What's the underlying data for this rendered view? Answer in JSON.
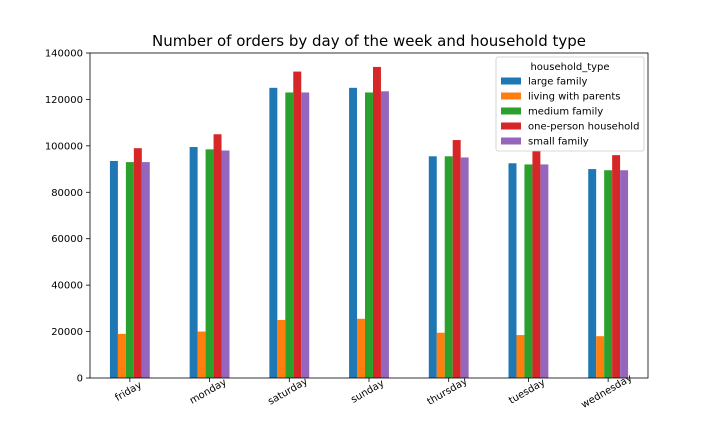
{
  "chart_data": {
    "type": "bar",
    "title": "Number of orders by day of the week and household type",
    "xlabel": "",
    "ylabel": "",
    "categories": [
      "friday",
      "monday",
      "saturday",
      "sunday",
      "thursday",
      "tuesday",
      "wednesday"
    ],
    "ylim": [
      0,
      140000
    ],
    "yticks": [
      0,
      20000,
      40000,
      60000,
      80000,
      100000,
      120000,
      140000
    ],
    "legend": {
      "title": "household_type",
      "position": "top-right"
    },
    "grid": false,
    "series": [
      {
        "name": "large family",
        "color": "#1f77b4",
        "values": [
          93500,
          99500,
          125000,
          125000,
          95500,
          92500,
          90000
        ]
      },
      {
        "name": "living with parents",
        "color": "#ff7f0e",
        "values": [
          19000,
          20000,
          25000,
          25500,
          19500,
          18500,
          18000
        ]
      },
      {
        "name": "medium family",
        "color": "#2ca02c",
        "values": [
          93000,
          98500,
          123000,
          123000,
          95500,
          92000,
          89500
        ]
      },
      {
        "name": "one-person household",
        "color": "#d62728",
        "values": [
          99000,
          105000,
          132000,
          134000,
          102500,
          98000,
          96000
        ]
      },
      {
        "name": "small family",
        "color": "#9467bd",
        "values": [
          93000,
          98000,
          123000,
          123500,
          95000,
          92000,
          89500
        ]
      }
    ]
  }
}
